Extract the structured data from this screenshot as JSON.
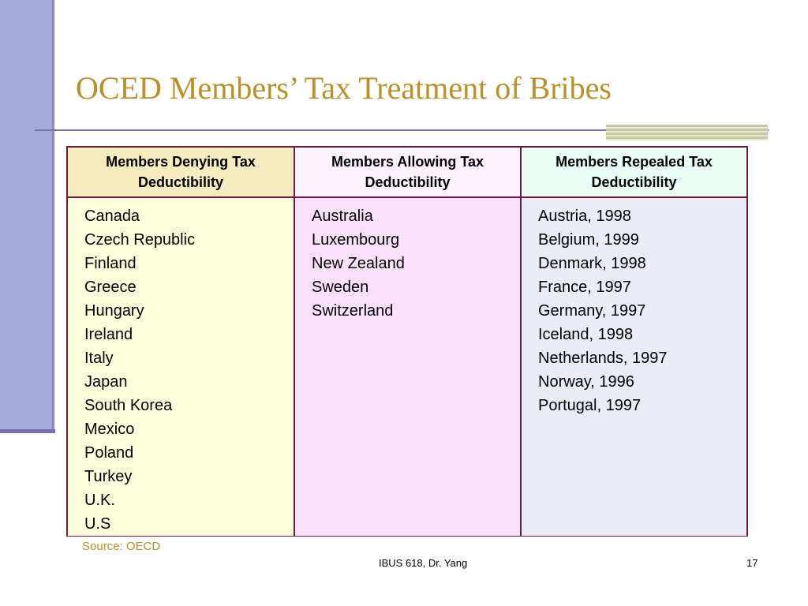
{
  "slide": {
    "title": "OCED Members’ Tax Treatment of Bribes",
    "source": "Source: OECD",
    "footer": "IBUS 618, Dr. Yang",
    "page_number": "17"
  },
  "colors": {
    "title": "#b8902c",
    "accent_bar": "#a4abd9",
    "table_border": "#6b1a3c",
    "col1_header_bg": "#f7ecc0",
    "col2_header_bg": "#fff4ff",
    "col3_header_bg": "#eafff5",
    "col1_body_bg": "#ffffdd",
    "col2_body_bg": "#fde0fd",
    "col3_body_bg": "#eaecf7"
  },
  "table": {
    "columns": [
      {
        "header_line1": "Members Denying Tax",
        "header_line2": "Deductibility",
        "items": [
          "Canada",
          "Czech Republic",
          "Finland",
          "Greece",
          "Hungary",
          "Ireland",
          "Italy",
          "Japan",
          "South Korea",
          "Mexico",
          "Poland",
          "Turkey",
          "U.K.",
          "U.S"
        ]
      },
      {
        "header_line1": "Members Allowing Tax",
        "header_line2": "Deductibility",
        "items": [
          "Australia",
          "Luxembourg",
          "New Zealand",
          "Sweden",
          "Switzerland"
        ]
      },
      {
        "header_line1": "Members Repealed Tax",
        "header_line2": "Deductibility",
        "items": [
          "Austria, 1998",
          "Belgium, 1999",
          "Denmark, 1998",
          "France, 1997",
          "Germany, 1997",
          "Iceland, 1998",
          "Netherlands, 1997",
          "Norway, 1996",
          "Portugal, 1997"
        ]
      }
    ]
  }
}
